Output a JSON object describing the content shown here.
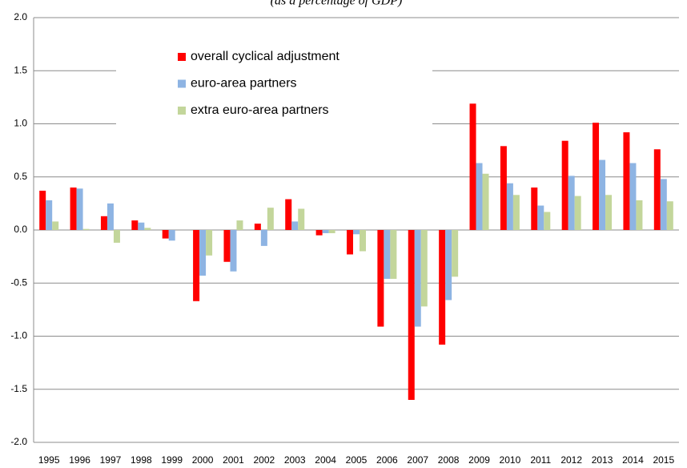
{
  "chart_data": {
    "type": "bar",
    "subtitle": "(as a percentage of GDP)",
    "categories": [
      "1995",
      "1996",
      "1997",
      "1998",
      "1999",
      "2000",
      "2001",
      "2002",
      "2003",
      "2004",
      "2005",
      "2006",
      "2007",
      "2008",
      "2009",
      "2010",
      "2011",
      "2012",
      "2013",
      "2014",
      "2015"
    ],
    "series": [
      {
        "name": "overall cyclical adjustment",
        "color": "#ff0000",
        "values": [
          0.37,
          0.4,
          0.13,
          0.09,
          -0.08,
          -0.67,
          -0.3,
          0.06,
          0.29,
          -0.05,
          -0.23,
          -0.91,
          -1.6,
          -1.08,
          1.19,
          0.79,
          0.4,
          0.84,
          1.01,
          0.92,
          0.76
        ]
      },
      {
        "name": "euro-area partners",
        "color": "#8eb4e3",
        "values": [
          0.28,
          0.39,
          0.25,
          0.07,
          -0.1,
          -0.43,
          -0.39,
          -0.15,
          0.08,
          -0.03,
          -0.04,
          -0.46,
          -0.91,
          -0.66,
          0.63,
          0.44,
          0.23,
          0.51,
          0.66,
          0.63,
          0.48
        ]
      },
      {
        "name": "extra euro-area partners",
        "color": "#c3d69b",
        "values": [
          0.08,
          0.01,
          -0.12,
          0.02,
          0.0,
          -0.24,
          0.09,
          0.21,
          0.2,
          -0.03,
          -0.2,
          -0.46,
          -0.72,
          -0.44,
          0.53,
          0.33,
          0.17,
          0.32,
          0.33,
          0.28,
          0.27
        ]
      }
    ],
    "ylim": [
      -2,
      2
    ],
    "yticks": [
      {
        "value": -2,
        "label": "-2.0"
      },
      -1.5,
      {
        "value": -1,
        "label": "-1.0"
      },
      -0.5,
      {
        "value": 0,
        "label": "0.0"
      },
      0.5,
      {
        "value": 1,
        "label": "1.0"
      },
      1.5,
      {
        "value": 2,
        "label": "2.0"
      }
    ],
    "grid": true
  }
}
